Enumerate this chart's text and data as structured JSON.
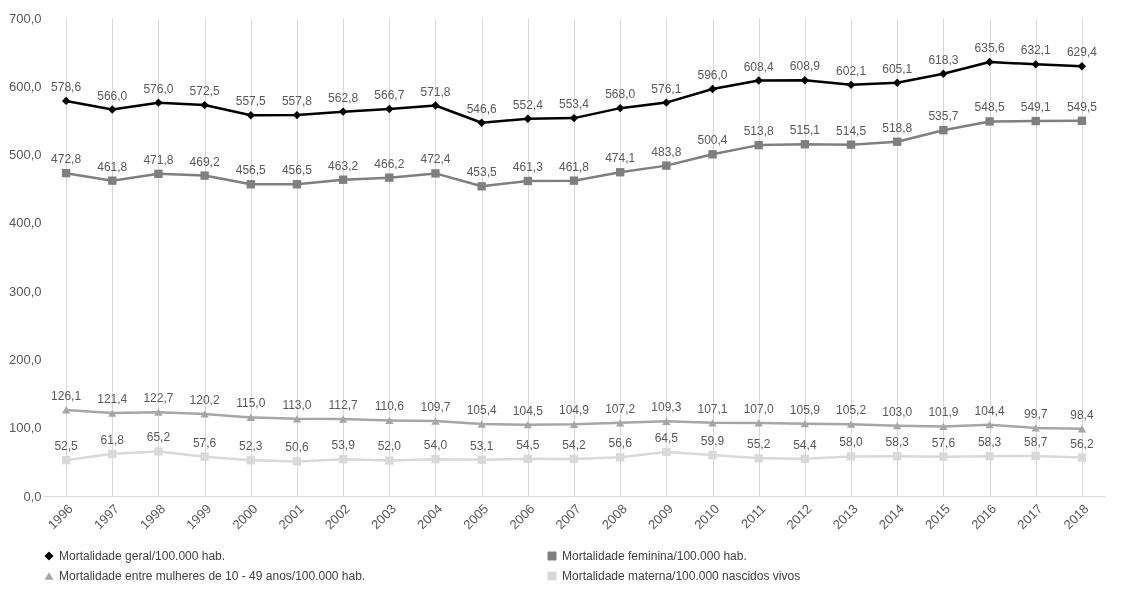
{
  "chart_data": {
    "type": "line",
    "categories": [
      "1996",
      "1997",
      "1998",
      "1999",
      "2000",
      "2001",
      "2002",
      "2003",
      "2004",
      "2005",
      "2006",
      "2007",
      "2008",
      "2009",
      "2010",
      "2011",
      "2012",
      "2013",
      "2014",
      "2015",
      "2016",
      "2017",
      "2018"
    ],
    "ylim": [
      0,
      700
    ],
    "yticks": [
      {
        "value": 0,
        "label": "0,0"
      },
      {
        "value": 100,
        "label": "100,0"
      },
      {
        "value": 200,
        "label": "200,0"
      },
      {
        "value": 300,
        "label": "300,0"
      },
      {
        "value": 400,
        "label": "400,0"
      },
      {
        "value": 500,
        "label": "500,0"
      },
      {
        "value": 600,
        "label": "600,0"
      },
      {
        "value": 700,
        "label": "700,0"
      }
    ],
    "grid": "x",
    "legend": "bottom",
    "series": [
      {
        "name": "Mortalidade geral/100.000 hab.",
        "color": "#000000",
        "marker": "diamond",
        "values": [
          578.6,
          566.0,
          576.0,
          572.5,
          557.5,
          557.8,
          562.8,
          566.7,
          571.8,
          546.6,
          552.4,
          553.4,
          568.0,
          576.1,
          596.0,
          608.4,
          608.9,
          602.1,
          605.1,
          618.3,
          635.6,
          632.1,
          629.4
        ],
        "value_labels": [
          "578,6",
          "566,0",
          "576,0",
          "572,5",
          "557,5",
          "557,8",
          "562,8",
          "566,7",
          "571,8",
          "546,6",
          "552,4",
          "553,4",
          "568,0",
          "576,1",
          "596,0",
          "608,4",
          "608,9",
          "602,1",
          "605,1",
          "618,3",
          "635,6",
          "632,1",
          "629,4"
        ]
      },
      {
        "name": "Mortalidade feminina/100.000 hab.",
        "color": "#7f7f7f",
        "marker": "square",
        "values": [
          472.8,
          461.8,
          471.8,
          469.2,
          456.5,
          456.5,
          463.2,
          466.2,
          472.4,
          453.5,
          461.3,
          461.8,
          474.1,
          483.8,
          500.4,
          513.8,
          515.1,
          514.5,
          518.8,
          535.7,
          548.5,
          549.1,
          549.5
        ],
        "value_labels": [
          "472,8",
          "461,8",
          "471,8",
          "469,2",
          "456,5",
          "456,5",
          "463,2",
          "466,2",
          "472,4",
          "453,5",
          "461,3",
          "461,8",
          "474,1",
          "483,8",
          "500,4",
          "513,8",
          "515,1",
          "514,5",
          "518,8",
          "535,7",
          "548,5",
          "549,1",
          "549,5"
        ]
      },
      {
        "name": "Mortalidade entre mulheres de 10 - 49 anos/100.000 hab.",
        "color": "#a6a6a6",
        "marker": "triangle",
        "values": [
          126.1,
          121.4,
          122.7,
          120.2,
          115.0,
          113.0,
          112.7,
          110.6,
          109.7,
          105.4,
          104.5,
          104.9,
          107.2,
          109.3,
          107.1,
          107.0,
          105.9,
          105.2,
          103.0,
          101.9,
          104.4,
          99.7,
          98.4
        ],
        "value_labels": [
          "126,1",
          "121,4",
          "122,7",
          "120,2",
          "115,0",
          "113,0",
          "112,7",
          "110,6",
          "109,7",
          "105,4",
          "104,5",
          "104,9",
          "107,2",
          "109,3",
          "107,1",
          "107,0",
          "105,9",
          "105,2",
          "103,0",
          "101,9",
          "104,4",
          "99,7",
          "98,4"
        ]
      },
      {
        "name": "Mortalidade materna/100.000 nascidos vivos",
        "color": "#d9d9d9",
        "marker": "square",
        "values": [
          52.5,
          61.8,
          65.2,
          57.6,
          52.3,
          50.6,
          53.9,
          52.0,
          54.0,
          53.1,
          54.5,
          54.2,
          56.6,
          64.5,
          59.9,
          55.2,
          54.4,
          58.0,
          58.3,
          57.6,
          58.3,
          58.7,
          56.2
        ],
        "value_labels": [
          "52,5",
          "61,8",
          "65,2",
          "57,6",
          "52,3",
          "50,6",
          "53,9",
          "52,0",
          "54,0",
          "53,1",
          "54,5",
          "54,2",
          "56,6",
          "64,5",
          "59,9",
          "55,2",
          "54,4",
          "58,0",
          "58,3",
          "57,6",
          "58,3",
          "58,7",
          "56,2"
        ]
      }
    ]
  }
}
